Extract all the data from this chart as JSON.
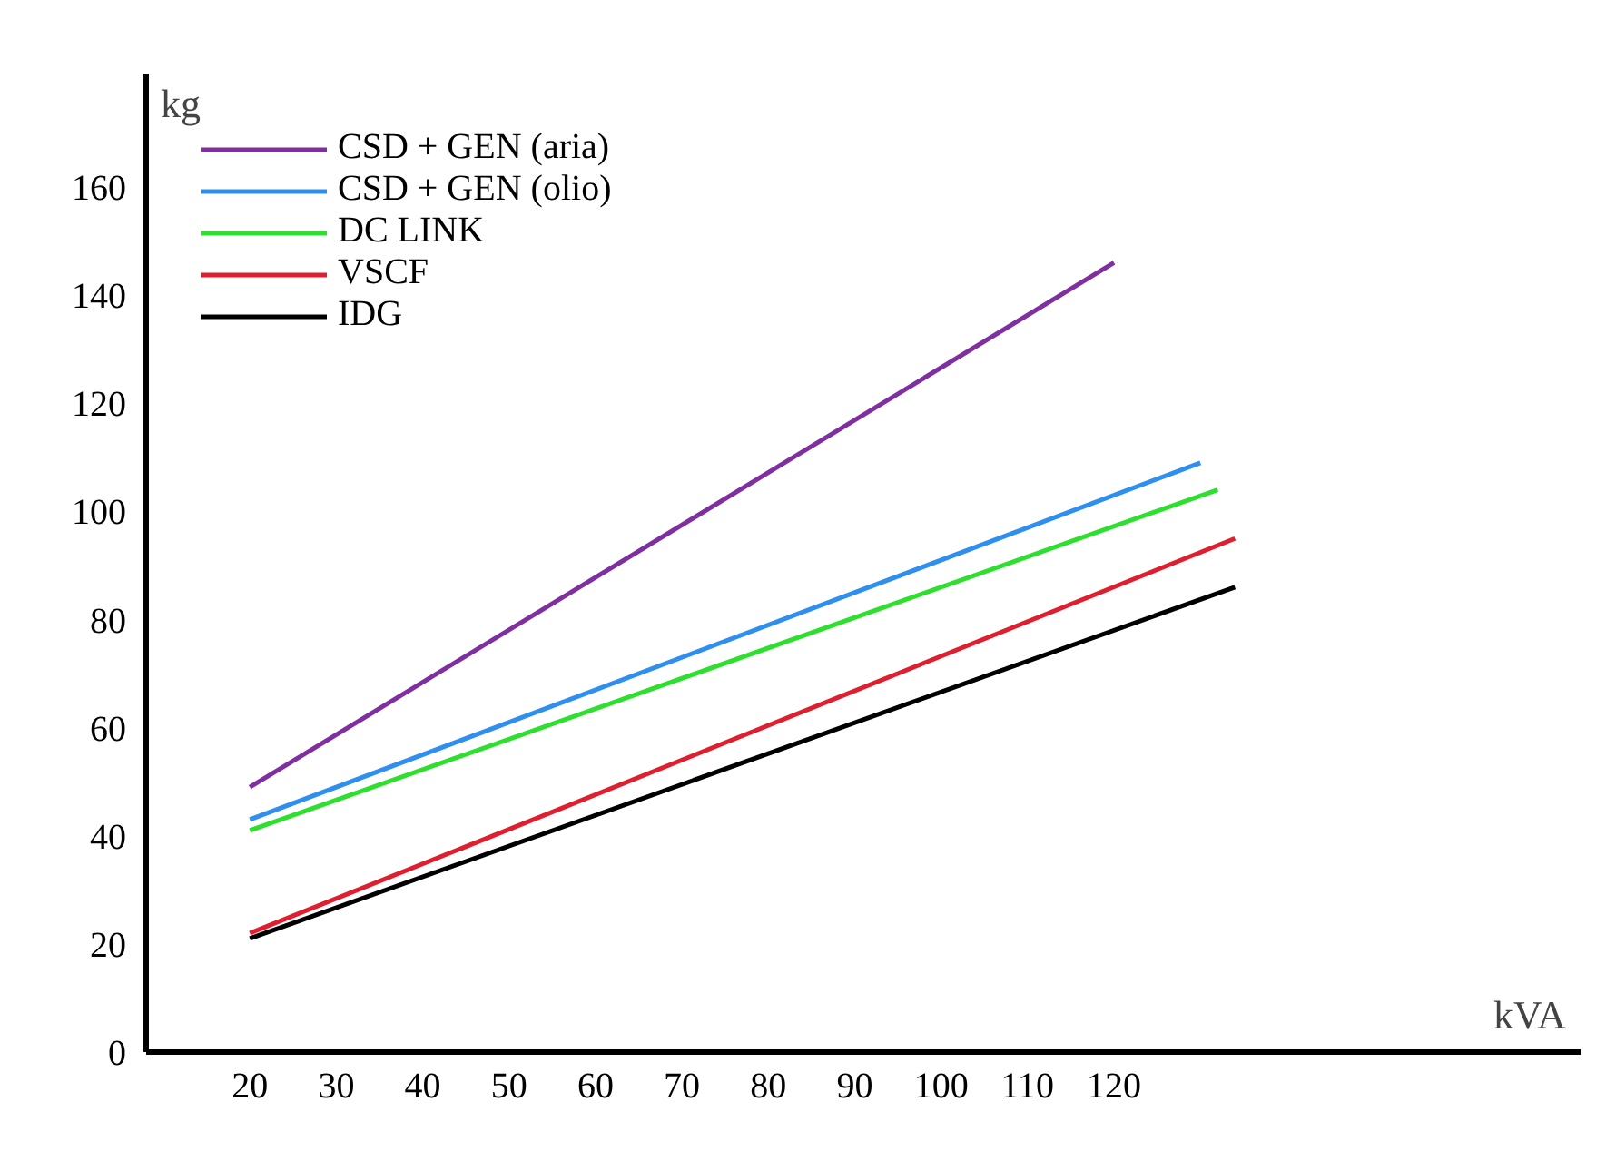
{
  "chart_data": {
    "type": "line",
    "xlabel": "kVA",
    "ylabel": "kg",
    "xlim": [
      8,
      174
    ],
    "ylim": [
      0,
      181
    ],
    "xticks": [
      20,
      30,
      40,
      50,
      60,
      70,
      80,
      90,
      100,
      110,
      120
    ],
    "yticks": [
      0,
      20,
      40,
      60,
      80,
      100,
      120,
      140,
      160
    ],
    "grid": false,
    "legend": "top left",
    "line_style": "solid",
    "marker": "none",
    "series": [
      {
        "name": "CSD + GEN (aria)",
        "color": "#7f2f9f",
        "x": [
          20,
          120
        ],
        "values": [
          49,
          146
        ]
      },
      {
        "name": "CSD + GEN (olio)",
        "color": "#2f8fef",
        "x": [
          20,
          130
        ],
        "values": [
          43,
          109
        ]
      },
      {
        "name": "DC LINK",
        "color": "#2fdf2f",
        "x": [
          20,
          132
        ],
        "values": [
          41,
          104
        ]
      },
      {
        "name": "VSCF",
        "color": "#df1f2f",
        "x": [
          20,
          134
        ],
        "values": [
          22,
          95
        ]
      },
      {
        "name": "IDG",
        "color": "#000000",
        "x": [
          20,
          134
        ],
        "values": [
          21,
          86
        ]
      }
    ]
  }
}
